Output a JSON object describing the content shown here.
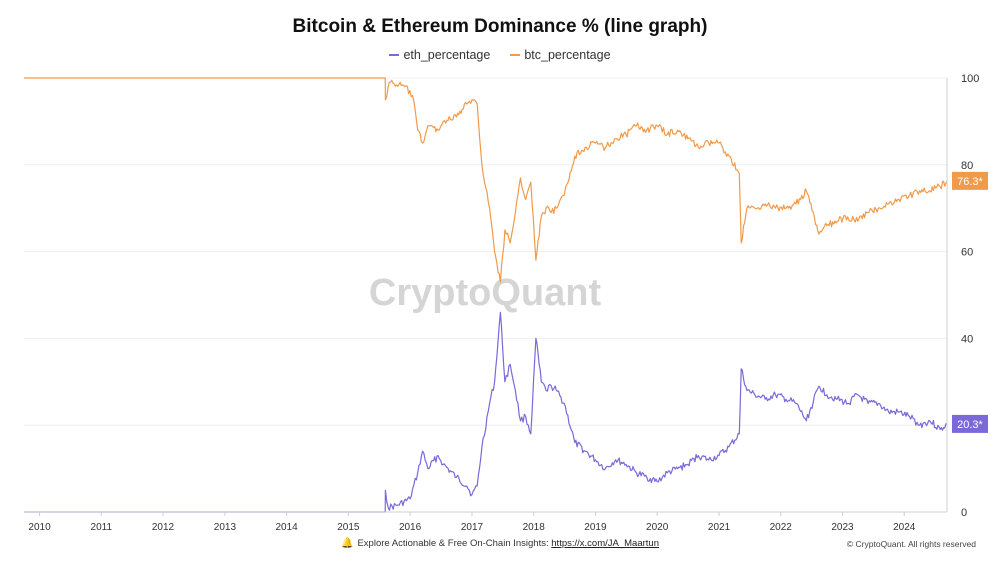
{
  "chart_data": {
    "type": "line",
    "title": "Bitcoin & Ethereum Dominance % (line graph)",
    "watermark": "CryptoQuant",
    "y_axis": {
      "position": "right",
      "ticks": [
        0,
        20,
        40,
        60,
        80,
        100
      ],
      "tick_labels": [
        "0",
        "",
        "40",
        "60",
        "80",
        "100"
      ],
      "ylim": [
        0,
        100
      ]
    },
    "x_axis": {
      "type": "date",
      "tick_labels": [
        "2010",
        "2011",
        "2012",
        "2013",
        "2014",
        "2015",
        "2016",
        "2017",
        "2018",
        "2019",
        "2020",
        "2021",
        "2022",
        "2023",
        "2024"
      ],
      "xlim": [
        "2009-10-01",
        "2024-09-10"
      ]
    },
    "grid": "horizontal",
    "legend": "top-center",
    "series": [
      {
        "name": "eth_percentage",
        "color": "#7b68d9",
        "last_value_label": "20.3*",
        "points": [
          [
            "2009-10-01",
            0
          ],
          [
            "2015-08-07",
            0
          ],
          [
            "2015-08-08",
            5
          ],
          [
            "2015-08-25",
            1
          ],
          [
            "2015-10-15",
            1.5
          ],
          [
            "2016-01-01",
            3
          ],
          [
            "2016-02-15",
            9
          ],
          [
            "2016-03-15",
            14
          ],
          [
            "2016-04-15",
            10
          ],
          [
            "2016-06-15",
            13
          ],
          [
            "2016-07-15",
            11
          ],
          [
            "2016-10-01",
            8
          ],
          [
            "2016-12-01",
            6
          ],
          [
            "2017-01-01",
            4
          ],
          [
            "2017-02-01",
            6
          ],
          [
            "2017-03-01",
            15
          ],
          [
            "2017-04-15",
            25
          ],
          [
            "2017-05-15",
            30
          ],
          [
            "2017-06-18",
            46
          ],
          [
            "2017-07-15",
            30
          ],
          [
            "2017-08-15",
            34
          ],
          [
            "2017-09-15",
            28
          ],
          [
            "2017-10-15",
            21
          ],
          [
            "2017-11-15",
            22
          ],
          [
            "2017-12-15",
            18
          ],
          [
            "2018-01-14",
            40
          ],
          [
            "2018-02-15",
            30
          ],
          [
            "2018-03-15",
            28
          ],
          [
            "2018-04-15",
            29
          ],
          [
            "2018-05-15",
            28
          ],
          [
            "2018-07-01",
            25
          ],
          [
            "2018-09-01",
            16
          ],
          [
            "2018-11-01",
            14
          ],
          [
            "2019-01-01",
            12
          ],
          [
            "2019-03-01",
            10
          ],
          [
            "2019-05-01",
            12
          ],
          [
            "2019-07-01",
            11
          ],
          [
            "2019-09-01",
            9
          ],
          [
            "2019-11-01",
            8
          ],
          [
            "2020-01-01",
            7
          ],
          [
            "2020-03-01",
            9
          ],
          [
            "2020-05-01",
            10
          ],
          [
            "2020-07-01",
            11
          ],
          [
            "2020-09-01",
            13
          ],
          [
            "2020-11-01",
            12
          ],
          [
            "2021-01-01",
            13
          ],
          [
            "2021-03-01",
            15
          ],
          [
            "2021-05-01",
            18
          ],
          [
            "2021-05-12",
            33
          ],
          [
            "2021-06-15",
            28
          ],
          [
            "2021-08-01",
            27
          ],
          [
            "2021-10-01",
            26
          ],
          [
            "2021-12-01",
            27
          ],
          [
            "2022-02-01",
            26
          ],
          [
            "2022-04-01",
            25
          ],
          [
            "2022-06-01",
            21
          ],
          [
            "2022-08-15",
            29
          ],
          [
            "2022-10-01",
            27
          ],
          [
            "2022-12-01",
            26
          ],
          [
            "2023-02-01",
            25
          ],
          [
            "2023-04-01",
            27
          ],
          [
            "2023-06-01",
            25
          ],
          [
            "2023-08-01",
            25
          ],
          [
            "2023-10-01",
            23
          ],
          [
            "2023-12-01",
            23
          ],
          [
            "2024-02-01",
            22
          ],
          [
            "2024-04-01",
            20
          ],
          [
            "2024-06-01",
            21
          ],
          [
            "2024-08-01",
            19
          ],
          [
            "2024-09-10",
            20.3
          ]
        ]
      },
      {
        "name": "btc_percentage",
        "color": "#f09a4a",
        "last_value_label": "76.3*",
        "points": [
          [
            "2009-10-01",
            100
          ],
          [
            "2015-08-07",
            100
          ],
          [
            "2015-08-08",
            95
          ],
          [
            "2015-09-01",
            99
          ],
          [
            "2015-12-01",
            98
          ],
          [
            "2016-01-15",
            96
          ],
          [
            "2016-02-15",
            88
          ],
          [
            "2016-03-15",
            85
          ],
          [
            "2016-04-15",
            89
          ],
          [
            "2016-06-15",
            88
          ],
          [
            "2016-07-15",
            90
          ],
          [
            "2016-10-01",
            91
          ],
          [
            "2016-12-01",
            94
          ],
          [
            "2017-01-01",
            95
          ],
          [
            "2017-02-01",
            94
          ],
          [
            "2017-03-01",
            80
          ],
          [
            "2017-04-15",
            70
          ],
          [
            "2017-05-15",
            60
          ],
          [
            "2017-06-18",
            53
          ],
          [
            "2017-07-15",
            65
          ],
          [
            "2017-08-15",
            62
          ],
          [
            "2017-09-15",
            69
          ],
          [
            "2017-10-15",
            77
          ],
          [
            "2017-11-15",
            72
          ],
          [
            "2017-12-15",
            76
          ],
          [
            "2018-01-14",
            58
          ],
          [
            "2018-02-15",
            68
          ],
          [
            "2018-03-15",
            70
          ],
          [
            "2018-04-15",
            69
          ],
          [
            "2018-05-15",
            70
          ],
          [
            "2018-07-01",
            73
          ],
          [
            "2018-09-01",
            82
          ],
          [
            "2018-11-01",
            84
          ],
          [
            "2019-01-01",
            85
          ],
          [
            "2019-03-01",
            84
          ],
          [
            "2019-05-01",
            86
          ],
          [
            "2019-07-01",
            87
          ],
          [
            "2019-09-01",
            89
          ],
          [
            "2019-11-01",
            88
          ],
          [
            "2020-01-01",
            89
          ],
          [
            "2020-03-01",
            87
          ],
          [
            "2020-05-01",
            88
          ],
          [
            "2020-07-01",
            86
          ],
          [
            "2020-09-01",
            84
          ],
          [
            "2020-11-01",
            85
          ],
          [
            "2021-01-01",
            85
          ],
          [
            "2021-03-01",
            82
          ],
          [
            "2021-05-01",
            78
          ],
          [
            "2021-05-12",
            62
          ],
          [
            "2021-06-15",
            70
          ],
          [
            "2021-08-01",
            70
          ],
          [
            "2021-10-01",
            71
          ],
          [
            "2021-12-01",
            70
          ],
          [
            "2022-02-01",
            70
          ],
          [
            "2022-04-01",
            71
          ],
          [
            "2022-06-01",
            74
          ],
          [
            "2022-08-15",
            64
          ],
          [
            "2022-10-01",
            66
          ],
          [
            "2022-12-01",
            67
          ],
          [
            "2023-02-01",
            68
          ],
          [
            "2023-04-01",
            67
          ],
          [
            "2023-06-01",
            69
          ],
          [
            "2023-08-01",
            70
          ],
          [
            "2023-10-01",
            71
          ],
          [
            "2023-12-01",
            72
          ],
          [
            "2024-02-01",
            73
          ],
          [
            "2024-04-01",
            74
          ],
          [
            "2024-06-01",
            74
          ],
          [
            "2024-08-01",
            75
          ],
          [
            "2024-09-10",
            76.3
          ]
        ]
      }
    ]
  },
  "legend": [
    {
      "label": "eth_percentage",
      "color": "#7b68d9"
    },
    {
      "label": "btc_percentage",
      "color": "#f09a4a"
    }
  ],
  "footer": {
    "insight_text": "Explore Actionable & Free On-Chain Insights:",
    "link_text": "https://x.com/JA_Maartun",
    "copyright": "© CryptoQuant. All rights reserved",
    "icon": "bell-icon"
  }
}
